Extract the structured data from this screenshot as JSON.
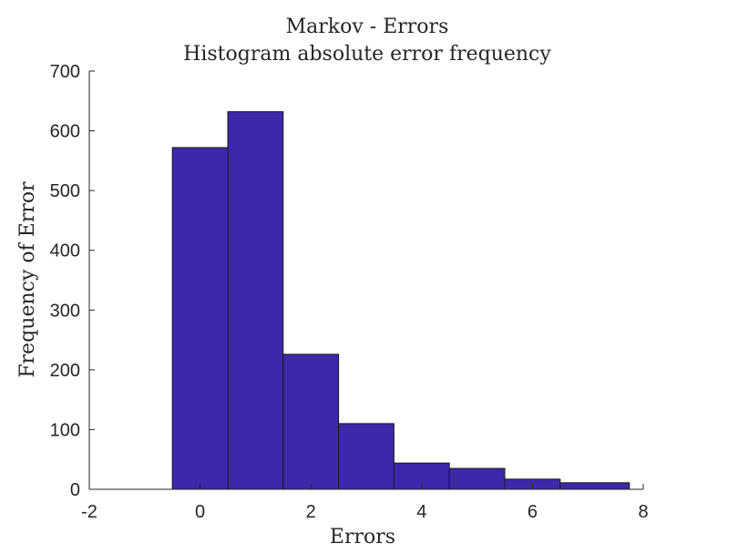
{
  "chart_data": {
    "type": "bar",
    "title": "Markov - Errors",
    "subtitle": "Histogram absolute error frequency",
    "xlabel": "Errors",
    "ylabel": "Frequency of Error",
    "xlim": [
      -2,
      8
    ],
    "ylim": [
      0,
      700
    ],
    "xticks": [
      -2,
      0,
      2,
      4,
      6,
      8
    ],
    "yticks": [
      0,
      100,
      200,
      300,
      400,
      500,
      600,
      700
    ],
    "bar_color": "#3c29aa",
    "bin_width": 1,
    "bins": [
      {
        "x0": -0.5,
        "x1": 0.5,
        "value": 572
      },
      {
        "x0": 0.5,
        "x1": 1.5,
        "value": 632
      },
      {
        "x0": 1.5,
        "x1": 2.5,
        "value": 226
      },
      {
        "x0": 2.5,
        "x1": 3.5,
        "value": 110
      },
      {
        "x0": 3.5,
        "x1": 4.5,
        "value": 44
      },
      {
        "x0": 4.5,
        "x1": 5.5,
        "value": 35
      },
      {
        "x0": 5.5,
        "x1": 6.5,
        "value": 17
      },
      {
        "x0": 6.5,
        "x1": 7.75,
        "value": 11
      }
    ],
    "grid": false,
    "legend": "none"
  }
}
